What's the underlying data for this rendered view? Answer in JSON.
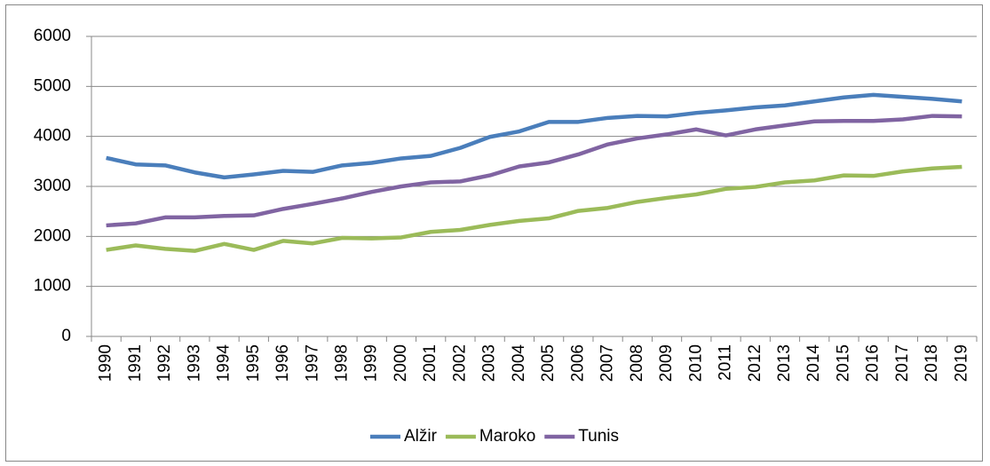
{
  "chart_data": {
    "type": "line",
    "categories": [
      "1990",
      "1991",
      "1992",
      "1993",
      "1994",
      "1995",
      "1996",
      "1997",
      "1998",
      "1999",
      "2000",
      "2001",
      "2002",
      "2003",
      "2004",
      "2005",
      "2006",
      "2007",
      "2008",
      "2009",
      "2010",
      "2011",
      "2012",
      "2013",
      "2014",
      "2015",
      "2016",
      "2017",
      "2018",
      "2019"
    ],
    "series": [
      {
        "name": "Alžir",
        "color": "#4a7ebb",
        "values": [
          3570,
          3440,
          3420,
          3280,
          3180,
          3240,
          3310,
          3290,
          3420,
          3470,
          3560,
          3610,
          3770,
          3990,
          4100,
          4290,
          4290,
          4370,
          4410,
          4400,
          4470,
          4520,
          4580,
          4620,
          4700,
          4780,
          4830,
          4790,
          4750,
          4700
        ]
      },
      {
        "name": "Maroko",
        "color": "#9bbb59",
        "values": [
          1730,
          1820,
          1750,
          1710,
          1850,
          1730,
          1910,
          1860,
          1970,
          1960,
          1980,
          2090,
          2130,
          2230,
          2310,
          2360,
          2510,
          2570,
          2690,
          2770,
          2840,
          2950,
          2990,
          3080,
          3120,
          3220,
          3210,
          3300,
          3360,
          3390
        ]
      },
      {
        "name": "Tunis",
        "color": "#8064a2",
        "values": [
          2220,
          2260,
          2380,
          2380,
          2410,
          2420,
          2550,
          2650,
          2760,
          2890,
          3000,
          3080,
          3100,
          3220,
          3400,
          3480,
          3640,
          3840,
          3960,
          4040,
          4140,
          4020,
          4140,
          4220,
          4300,
          4310,
          4310,
          4340,
          4410,
          4400
        ]
      }
    ],
    "ylim": [
      0,
      6000
    ],
    "yticks": [
      0,
      1000,
      2000,
      3000,
      4000,
      5000,
      6000
    ],
    "grid": true,
    "legend": "bottom"
  }
}
